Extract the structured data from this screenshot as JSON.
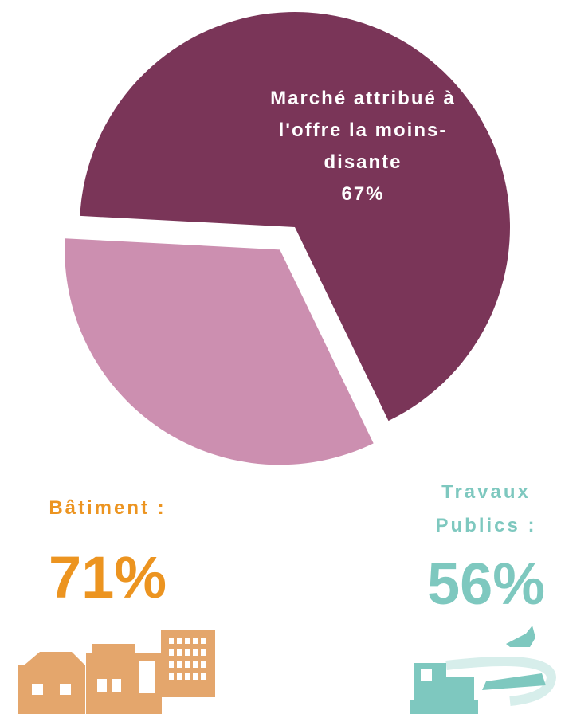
{
  "chart_data": {
    "type": "pie",
    "categories": [
      "Marché attribué à l'offre la moins-disante",
      null
    ],
    "values": [
      67,
      33
    ],
    "value_labels": [
      "67%",
      null
    ],
    "colors": [
      "#7a3558",
      "#cc8fb0"
    ]
  },
  "stats": [
    {
      "label": "Bâtiment :",
      "value": "71%",
      "color": "#ec9420"
    },
    {
      "label": "Travaux Publics :",
      "value": "56%",
      "color": "#7ec8bf"
    }
  ]
}
